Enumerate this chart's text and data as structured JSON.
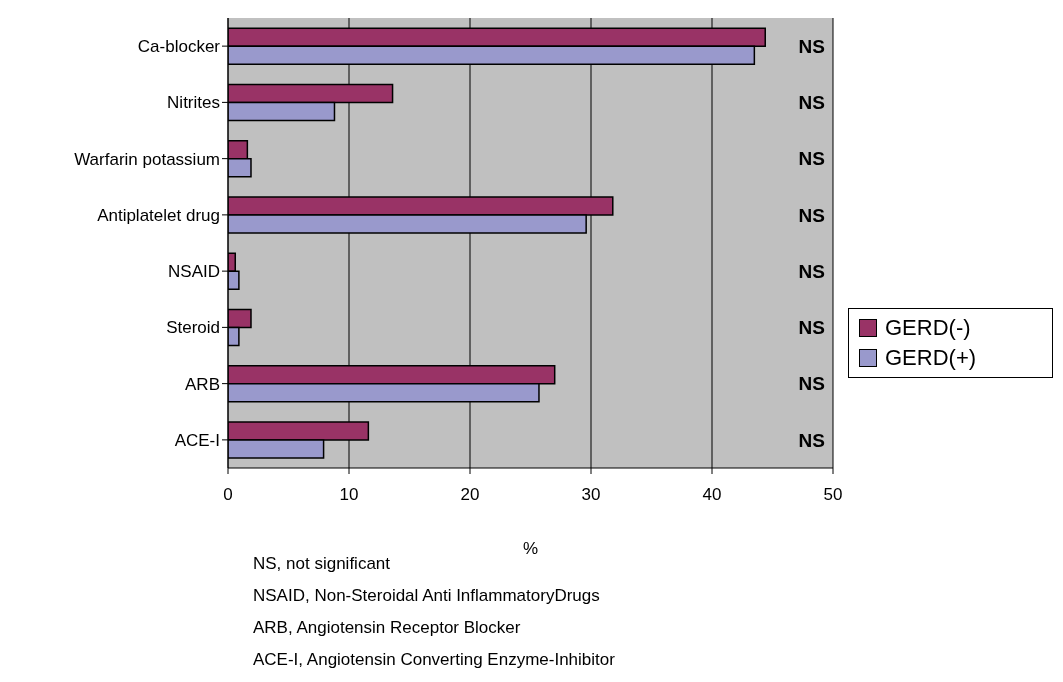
{
  "chart_data": {
    "type": "bar",
    "orientation": "horizontal",
    "categories": [
      "Ca-blocker",
      "Nitrites",
      "Warfarin potassium",
      "Antiplatelet drug",
      "NSAID",
      "Steroid",
      "ARB",
      "ACE-I"
    ],
    "series": [
      {
        "name": "GERD(-)",
        "color": "#993366",
        "values": [
          44.4,
          13.6,
          1.6,
          31.8,
          0.6,
          1.9,
          27.0,
          11.6
        ]
      },
      {
        "name": "GERD(+)",
        "color": "#9999cc",
        "values": [
          43.5,
          8.8,
          1.9,
          29.6,
          0.9,
          0.9,
          25.7,
          7.9
        ]
      }
    ],
    "xlabel": "%",
    "xlim": [
      0,
      50
    ],
    "xticks": [
      0,
      10,
      20,
      30,
      40,
      50
    ],
    "grid": "x",
    "legend": "right",
    "annotations": [
      "NS",
      "NS",
      "NS",
      "NS",
      "NS",
      "NS",
      "NS",
      "NS",
      "NS, not significant",
      "NSAID, Non-Steroidal Anti InflammatoryDrugs",
      "ARB, Angiotensin Receptor Blocker",
      "ACE-I, Angiotensin Converting Enzyme-Inhibitor"
    ]
  }
}
